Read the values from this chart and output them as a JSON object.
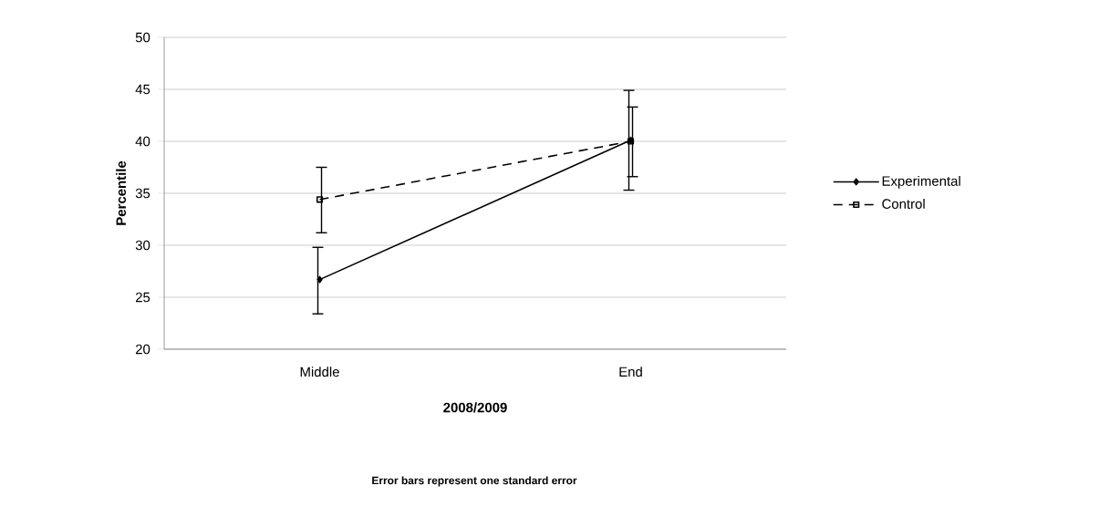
{
  "chart_data": {
    "type": "line",
    "ylabel": "Percentile",
    "xlabel": "2008/2009",
    "categories": [
      "Middle",
      "End"
    ],
    "series": [
      {
        "name": "Experimental",
        "color": "#000000",
        "values": [
          26.7,
          40.1
        ],
        "errors": [
          [
            23.4,
            29.8
          ],
          [
            35.3,
            44.9
          ]
        ],
        "marker": "diamond",
        "line_style": "solid"
      },
      {
        "name": "Control",
        "color": "#000000",
        "values": [
          34.4,
          40.0
        ],
        "errors": [
          [
            31.2,
            37.5
          ],
          [
            36.6,
            43.3
          ]
        ],
        "marker": "square",
        "line_style": "dashed"
      }
    ],
    "ylim": [
      20,
      50
    ],
    "yticks": [
      20,
      25,
      30,
      35,
      40,
      45,
      50
    ],
    "grid": "y",
    "legend": "right",
    "annotations": [
      "Error bars represent one standard error"
    ]
  }
}
